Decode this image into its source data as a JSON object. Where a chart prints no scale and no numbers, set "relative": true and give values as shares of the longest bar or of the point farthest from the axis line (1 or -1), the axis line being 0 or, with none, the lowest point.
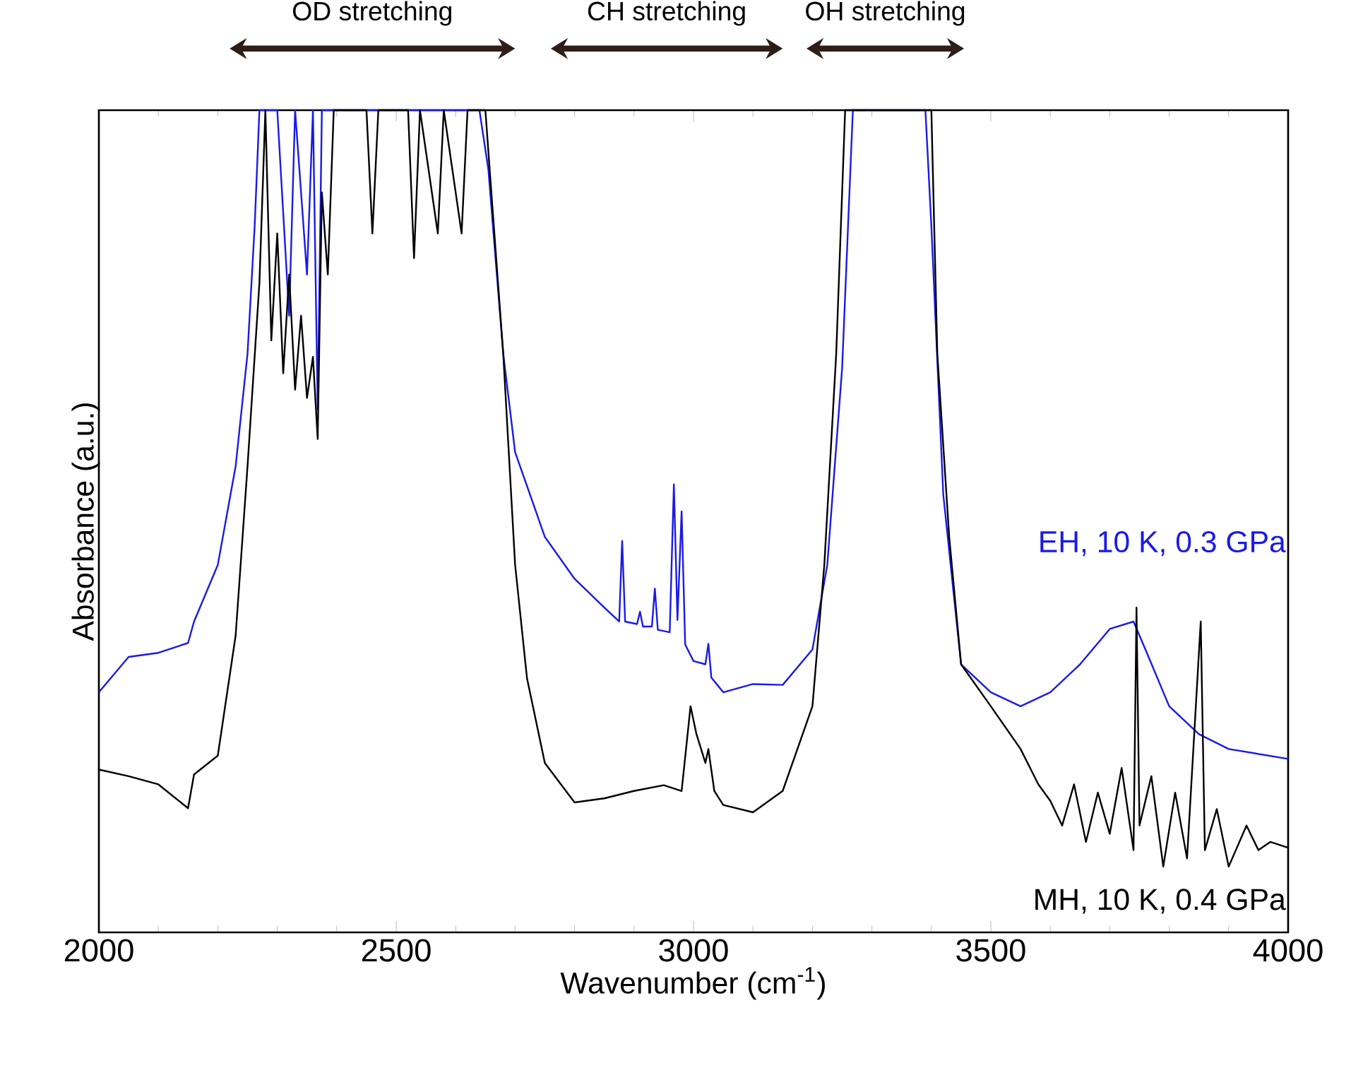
{
  "chart_data": {
    "type": "line",
    "relative": true,
    "xlabel": "Wavenumber (cm$^{-1}$)",
    "ylabel": "Absorbance (a.u.)",
    "xlim": [
      2000,
      4000
    ],
    "xticks": [
      2000,
      2500,
      3000,
      3500,
      4000
    ],
    "grid": false,
    "legend": false,
    "marker": "none",
    "line_style": "solid",
    "annotations": [
      "OD stretching",
      "CH stretching",
      "OH stretching"
    ],
    "series": [
      {
        "name": "MH, 10 K, 0.4 GPa",
        "color": "#000000",
        "x": [
          2000,
          2050,
          2100,
          2150,
          2160,
          2200,
          2230,
          2250,
          2270,
          2280,
          2290,
          2300,
          2310,
          2320,
          2330,
          2340,
          2350,
          2360,
          2368,
          2375,
          2385,
          2395,
          2450,
          2460,
          2470,
          2520,
          2530,
          2540,
          2570,
          2580,
          2610,
          2620,
          2640,
          2650,
          2660,
          2680,
          2700,
          2720,
          2750,
          2800,
          2850,
          2900,
          2950,
          2980,
          2995,
          3005,
          3020,
          3025,
          3035,
          3050,
          3100,
          3150,
          3200,
          3220,
          3240,
          3255,
          3400,
          3410,
          3430,
          3450,
          3500,
          3550,
          3580,
          3600,
          3620,
          3640,
          3660,
          3680,
          3700,
          3720,
          3740,
          3745,
          3750,
          3770,
          3790,
          3810,
          3830,
          3853,
          3860,
          3880,
          3900,
          3930,
          3950,
          3970,
          4000
        ],
        "values": [
          0.198,
          0.19,
          0.18,
          0.151,
          0.192,
          0.215,
          0.361,
          0.567,
          0.79,
          1.0,
          0.72,
          0.85,
          0.68,
          0.8,
          0.66,
          0.75,
          0.65,
          0.7,
          0.6,
          0.9,
          0.8,
          1.0,
          1.0,
          0.85,
          1.0,
          1.0,
          0.82,
          1.0,
          0.85,
          1.0,
          0.85,
          1.0,
          1.0,
          1.0,
          0.9,
          0.704,
          0.447,
          0.309,
          0.206,
          0.158,
          0.163,
          0.172,
          0.179,
          0.172,
          0.275,
          0.241,
          0.206,
          0.223,
          0.172,
          0.155,
          0.146,
          0.172,
          0.275,
          0.447,
          0.704,
          1.0,
          1.0,
          0.704,
          0.481,
          0.326,
          0.275,
          0.223,
          0.18,
          0.16,
          0.13,
          0.18,
          0.11,
          0.17,
          0.12,
          0.2,
          0.1,
          0.395,
          0.13,
          0.19,
          0.08,
          0.17,
          0.09,
          0.378,
          0.1,
          0.15,
          0.08,
          0.13,
          0.1,
          0.11,
          0.103
        ]
      },
      {
        "name": "EH, 10 K, 0.3 GPa",
        "color": "#1a1ae6",
        "x": [
          2000,
          2050,
          2100,
          2150,
          2160,
          2200,
          2230,
          2250,
          2262,
          2270,
          2300,
          2320,
          2330,
          2350,
          2360,
          2368,
          2375,
          2640,
          2655,
          2680,
          2700,
          2750,
          2800,
          2850,
          2875,
          2880,
          2885,
          2905,
          2910,
          2915,
          2930,
          2935,
          2940,
          2960,
          2967,
          2973,
          2980,
          2986,
          3000,
          3020,
          3025,
          3030,
          3050,
          3100,
          3150,
          3200,
          3225,
          3250,
          3268,
          3390,
          3400,
          3420,
          3450,
          3500,
          3550,
          3600,
          3650,
          3700,
          3740,
          3760,
          3800,
          3850,
          3900,
          4000
        ],
        "values": [
          0.292,
          0.335,
          0.34,
          0.352,
          0.378,
          0.447,
          0.567,
          0.704,
          0.859,
          1.0,
          1.0,
          0.75,
          1.0,
          0.8,
          1.0,
          0.636,
          1.0,
          1.0,
          0.928,
          0.704,
          0.584,
          0.481,
          0.43,
          0.395,
          0.378,
          0.476,
          0.378,
          0.375,
          0.39,
          0.372,
          0.372,
          0.418,
          0.368,
          0.365,
          0.545,
          0.38,
          0.512,
          0.35,
          0.33,
          0.326,
          0.351,
          0.31,
          0.292,
          0.302,
          0.301,
          0.344,
          0.447,
          0.687,
          1.0,
          1.0,
          0.859,
          0.533,
          0.326,
          0.292,
          0.275,
          0.292,
          0.326,
          0.369,
          0.378,
          0.344,
          0.275,
          0.241,
          0.223,
          0.211
        ]
      }
    ]
  }
}
